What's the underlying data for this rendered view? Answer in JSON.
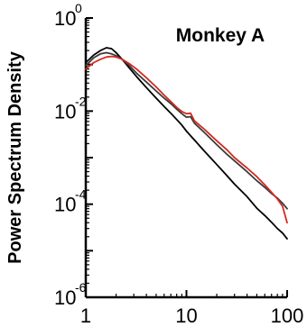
{
  "chart_data": {
    "type": "line",
    "title": "Monkey A",
    "xlabel": "",
    "ylabel": "Power Spectrum Density",
    "x_scale": "log",
    "y_scale": "log",
    "xlim": [
      1,
      100
    ],
    "ylim": [
      1e-06,
      1
    ],
    "x_ticks": [
      {
        "value": 1,
        "label": "1"
      },
      {
        "value": 10,
        "label": "10"
      },
      {
        "value": 100,
        "label": "100"
      }
    ],
    "y_ticks": [
      {
        "value": 1,
        "base": "10",
        "exp": "0"
      },
      {
        "value": 0.01,
        "base": "10",
        "exp": "-2"
      },
      {
        "value": 0.0001,
        "base": "10",
        "exp": "-4"
      },
      {
        "value": 1e-06,
        "base": "10",
        "exp": "-6"
      }
    ],
    "grid": false,
    "legend": "none",
    "series": [
      {
        "color": "#000000",
        "points": [
          [
            1.0,
            0.11
          ],
          [
            1.2,
            0.16
          ],
          [
            1.4,
            0.2
          ],
          [
            1.6,
            0.23
          ],
          [
            1.8,
            0.22
          ],
          [
            2.0,
            0.18
          ],
          [
            2.3,
            0.13
          ],
          [
            2.7,
            0.085
          ],
          [
            3.2,
            0.055
          ],
          [
            4.0,
            0.032
          ],
          [
            5.0,
            0.019
          ],
          [
            6.0,
            0.0125
          ],
          [
            7.0,
            0.009
          ],
          [
            8.0,
            0.0066
          ],
          [
            9.0,
            0.005
          ],
          [
            10.0,
            0.0037
          ],
          [
            12.0,
            0.0024
          ],
          [
            15.0,
            0.0014
          ],
          [
            20.0,
            0.00071
          ],
          [
            25.0,
            0.00042
          ],
          [
            30.0,
            0.00027
          ],
          [
            40.0,
            0.000145
          ],
          [
            50.0,
            8.2e-05
          ],
          [
            60.0,
            5.7e-05
          ],
          [
            70.0,
            4.1e-05
          ],
          [
            80.0,
            3e-05
          ],
          [
            90.0,
            2.4e-05
          ],
          [
            100.0,
            1.8e-05
          ]
        ]
      },
      {
        "color": "#3a3a3a",
        "points": [
          [
            1.0,
            0.095
          ],
          [
            1.2,
            0.14
          ],
          [
            1.4,
            0.17
          ],
          [
            1.6,
            0.18
          ],
          [
            1.8,
            0.17
          ],
          [
            2.0,
            0.155
          ],
          [
            2.3,
            0.13
          ],
          [
            2.7,
            0.095
          ],
          [
            3.2,
            0.065
          ],
          [
            4.0,
            0.042
          ],
          [
            5.0,
            0.027
          ],
          [
            6.0,
            0.019
          ],
          [
            7.0,
            0.0145
          ],
          [
            8.0,
            0.011
          ],
          [
            9.0,
            0.0088
          ],
          [
            10.0,
            0.0074
          ],
          [
            11.0,
            0.0076
          ],
          [
            12.0,
            0.0055
          ],
          [
            15.0,
            0.0035
          ],
          [
            20.0,
            0.0019
          ],
          [
            25.0,
            0.0012
          ],
          [
            30.0,
            0.00085
          ],
          [
            40.0,
            0.0005
          ],
          [
            50.0,
            0.00032
          ],
          [
            60.0,
            0.00023
          ],
          [
            70.0,
            0.00017
          ],
          [
            80.0,
            0.000135
          ],
          [
            90.0,
            0.000105
          ],
          [
            100.0,
            8e-05
          ]
        ]
      },
      {
        "color": "#d42a20",
        "points": [
          [
            1.0,
            0.08
          ],
          [
            1.2,
            0.11
          ],
          [
            1.4,
            0.13
          ],
          [
            1.6,
            0.145
          ],
          [
            1.8,
            0.15
          ],
          [
            2.0,
            0.145
          ],
          [
            2.3,
            0.13
          ],
          [
            2.7,
            0.105
          ],
          [
            3.2,
            0.08
          ],
          [
            4.0,
            0.052
          ],
          [
            5.0,
            0.033
          ],
          [
            6.0,
            0.022
          ],
          [
            7.0,
            0.016
          ],
          [
            8.0,
            0.012
          ],
          [
            9.0,
            0.0098
          ],
          [
            10.0,
            0.0088
          ],
          [
            11.0,
            0.009
          ],
          [
            12.0,
            0.0062
          ],
          [
            15.0,
            0.0041
          ],
          [
            20.0,
            0.0023
          ],
          [
            25.0,
            0.0015
          ],
          [
            30.0,
            0.001
          ],
          [
            40.0,
            0.0006
          ],
          [
            50.0,
            0.00039
          ],
          [
            60.0,
            0.00026
          ],
          [
            70.0,
            0.00018
          ],
          [
            80.0,
            0.00013
          ],
          [
            90.0,
            9e-05
          ],
          [
            100.0,
            4e-05
          ]
        ]
      }
    ]
  }
}
